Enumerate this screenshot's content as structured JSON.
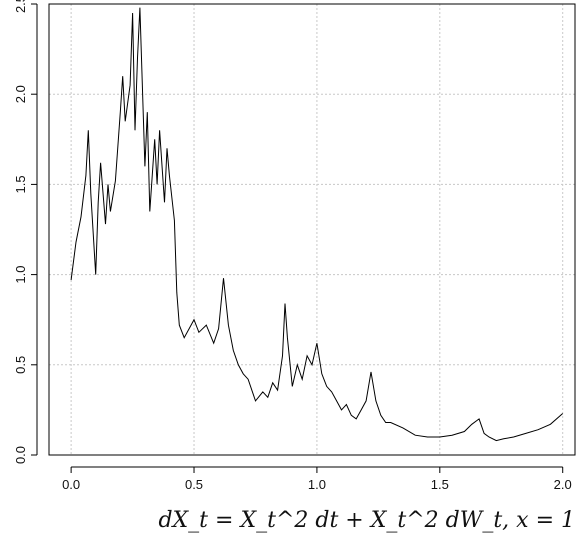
{
  "chart_data": {
    "type": "line",
    "title": "",
    "xlabel": "",
    "ylabel": "",
    "xlim": [
      -0.09,
      2.05
    ],
    "ylim": [
      0.0,
      2.5
    ],
    "x_ticks": [
      0.0,
      0.5,
      1.0,
      1.5,
      2.0
    ],
    "y_ticks": [
      0.0,
      0.5,
      1.0,
      1.5,
      2.0,
      2.5
    ],
    "x_tick_labels": [
      "0.0",
      "0.5",
      "1.0",
      "1.5",
      "2.0"
    ],
    "y_tick_labels": [
      "0.0",
      "0.5",
      "1.0",
      "1.5",
      "2.0",
      "2.5"
    ],
    "grid": true,
    "line_color": "#000000",
    "grid_color": "#c8c8c8",
    "series": [
      {
        "x": [
          0.0,
          0.02,
          0.04,
          0.06,
          0.07,
          0.08,
          0.1,
          0.11,
          0.12,
          0.14,
          0.15,
          0.16,
          0.18,
          0.2,
          0.21,
          0.22,
          0.24,
          0.25,
          0.26,
          0.27,
          0.28,
          0.3,
          0.31,
          0.32,
          0.34,
          0.35,
          0.36,
          0.38,
          0.39,
          0.4,
          0.42,
          0.43,
          0.44,
          0.46,
          0.48,
          0.5,
          0.52,
          0.55,
          0.58,
          0.6,
          0.62,
          0.64,
          0.66,
          0.68,
          0.7,
          0.72,
          0.75,
          0.78,
          0.8,
          0.82,
          0.84,
          0.86,
          0.87,
          0.88,
          0.9,
          0.92,
          0.94,
          0.96,
          0.98,
          1.0,
          1.02,
          1.04,
          1.06,
          1.08,
          1.1,
          1.12,
          1.14,
          1.16,
          1.18,
          1.2,
          1.22,
          1.24,
          1.26,
          1.28,
          1.3,
          1.35,
          1.4,
          1.45,
          1.5,
          1.55,
          1.6,
          1.63,
          1.66,
          1.68,
          1.7,
          1.73,
          1.76,
          1.8,
          1.85,
          1.9,
          1.95,
          2.0
        ],
        "y": [
          0.97,
          1.18,
          1.32,
          1.55,
          1.8,
          1.45,
          1.0,
          1.4,
          1.62,
          1.28,
          1.5,
          1.35,
          1.52,
          1.9,
          2.1,
          1.85,
          2.05,
          2.45,
          1.8,
          2.2,
          2.48,
          1.6,
          1.9,
          1.35,
          1.75,
          1.5,
          1.8,
          1.4,
          1.7,
          1.55,
          1.3,
          0.9,
          0.72,
          0.65,
          0.7,
          0.75,
          0.68,
          0.72,
          0.62,
          0.7,
          0.98,
          0.72,
          0.58,
          0.5,
          0.45,
          0.42,
          0.3,
          0.35,
          0.32,
          0.4,
          0.36,
          0.55,
          0.84,
          0.65,
          0.38,
          0.5,
          0.42,
          0.55,
          0.5,
          0.62,
          0.45,
          0.38,
          0.35,
          0.3,
          0.25,
          0.28,
          0.22,
          0.2,
          0.25,
          0.3,
          0.46,
          0.3,
          0.22,
          0.18,
          0.18,
          0.15,
          0.11,
          0.1,
          0.1,
          0.11,
          0.13,
          0.17,
          0.2,
          0.12,
          0.1,
          0.08,
          0.09,
          0.1,
          0.12,
          0.14,
          0.17,
          0.23
        ]
      }
    ]
  },
  "caption": "dX_t = X_t^2 dt + X_t^2 dW_t,  x = 1"
}
